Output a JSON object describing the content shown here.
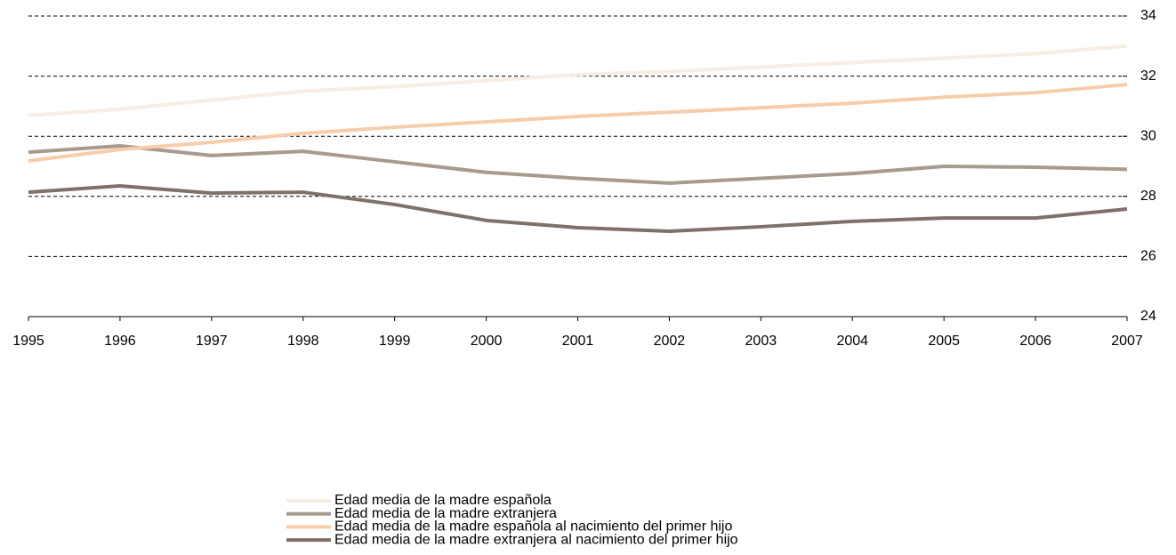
{
  "chart_data": {
    "type": "line",
    "categories": [
      "1995",
      "1996",
      "1997",
      "1998",
      "1999",
      "2000",
      "2001",
      "2002",
      "2003",
      "2004",
      "2005",
      "2006",
      "2007"
    ],
    "series": [
      {
        "name": "Edad media de la madre española",
        "color": "#f7ede2",
        "values": [
          30.69,
          30.9,
          31.2,
          31.5,
          31.65,
          31.85,
          32.05,
          32.15,
          32.3,
          32.45,
          32.6,
          32.75,
          33.0
        ]
      },
      {
        "name": "Edad media de la madre extranjera",
        "color": "#a89a8c",
        "values": [
          29.47,
          29.68,
          29.36,
          29.5,
          29.15,
          28.8,
          28.6,
          28.44,
          28.6,
          28.76,
          29.0,
          28.97,
          28.9
        ]
      },
      {
        "name": "Edad media de la madre española al nacimiento del primer hijo",
        "color": "#f6cdab",
        "values": [
          29.18,
          29.56,
          29.8,
          30.1,
          30.3,
          30.48,
          30.66,
          30.8,
          30.95,
          31.1,
          31.3,
          31.45,
          31.72
        ]
      },
      {
        "name": "Edad media de la madre extranjera al nacimiento del primer hijo",
        "color": "#7f7169",
        "values": [
          28.14,
          28.35,
          28.11,
          28.14,
          27.73,
          27.2,
          26.96,
          26.84,
          26.99,
          27.17,
          27.28,
          27.28,
          27.58
        ]
      }
    ],
    "ylim": [
      24,
      34
    ],
    "yticks": [
      24,
      26,
      28,
      30,
      32,
      34
    ],
    "grid": true,
    "legend": "bottom"
  }
}
